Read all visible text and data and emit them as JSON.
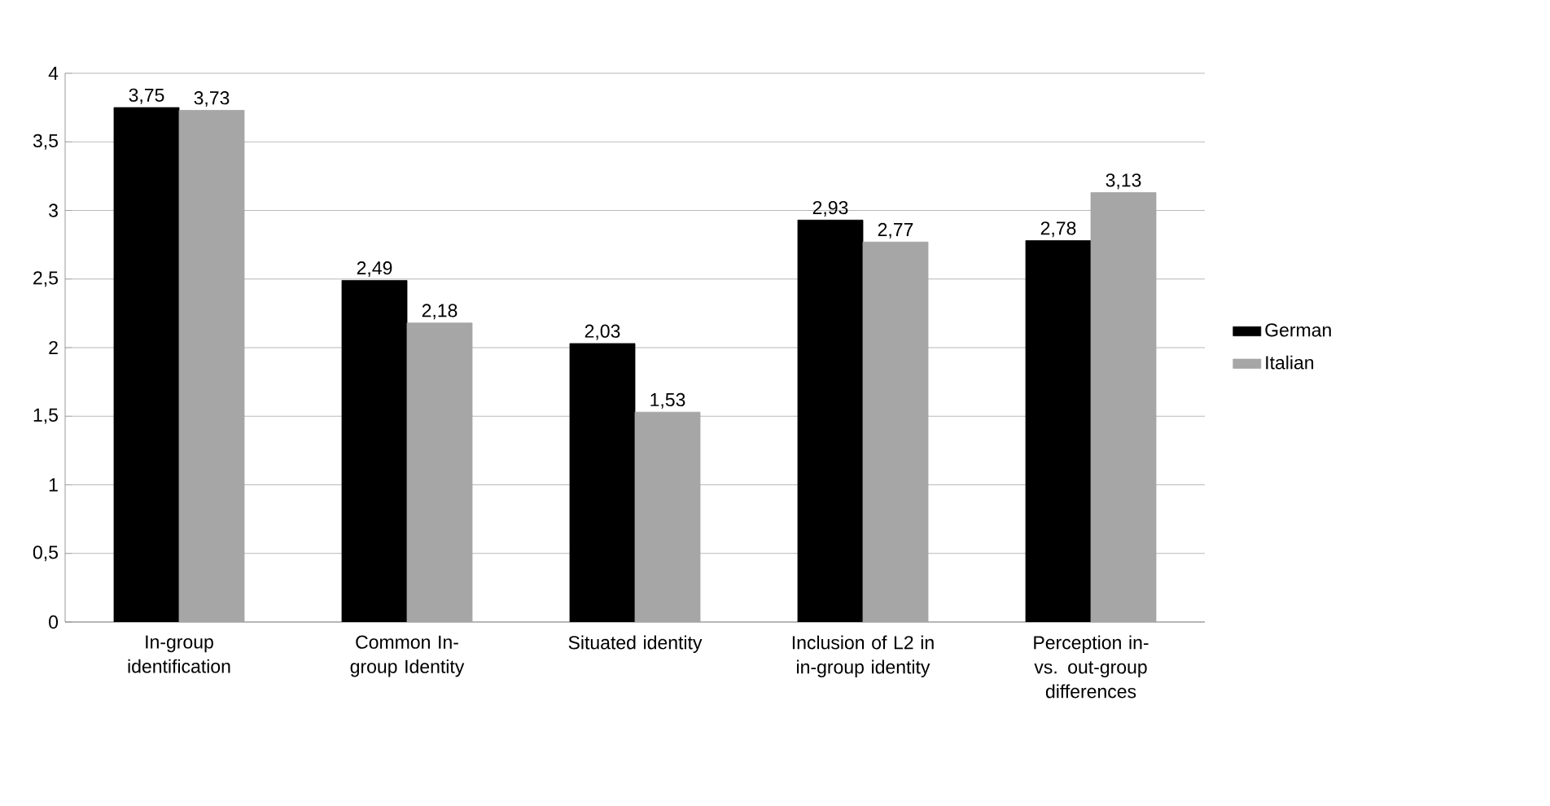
{
  "chart_data": {
    "type": "bar",
    "categories": [
      "In-group identification",
      "Common In-group Identity",
      "Situated identity",
      "Inclusion of L2 in in-group identity",
      "Perception in- vs. out-group differences"
    ],
    "series": [
      {
        "name": "German",
        "color": "#000000",
        "values": [
          3.75,
          2.49,
          2.03,
          2.93,
          2.78
        ],
        "value_labels": [
          "3,75",
          "2,49",
          "2,03",
          "2,93",
          "2,78"
        ]
      },
      {
        "name": "Italian",
        "color": "#a6a6a6",
        "values": [
          3.73,
          2.18,
          1.53,
          2.77,
          3.13
        ],
        "value_labels": [
          "3,73",
          "2,18",
          "1,53",
          "2,77",
          "3,13"
        ]
      }
    ],
    "ylim": [
      0,
      4
    ],
    "yticks": [
      0,
      {
        "value": 0.5,
        "label": "0,5"
      },
      1,
      {
        "value": 1.5,
        "label": "1,5"
      },
      2,
      {
        "value": 2.5,
        "label": "2,5"
      },
      3,
      {
        "value": 3.5,
        "label": "3,5"
      },
      4
    ],
    "grid": "y",
    "legend": "right"
  }
}
